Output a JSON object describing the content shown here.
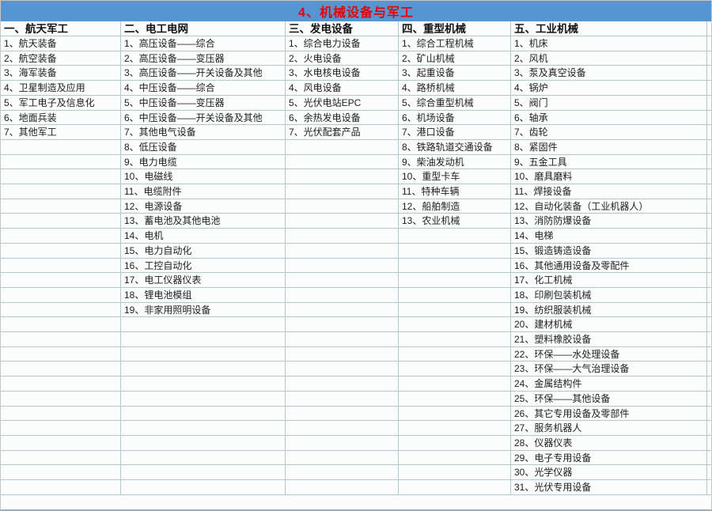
{
  "title": "4、机械设备与军工",
  "colors": {
    "title_bar_bg": "#5596d2",
    "title_text": "#e60000",
    "grid_border": "#b3c7d1",
    "cell_bg": "#fbfdfc"
  },
  "table": {
    "row_count": 31,
    "columns": [
      {
        "header": "一、航天军工",
        "items": [
          "1、航天装备",
          "2、航空装备",
          "3、海军装备",
          "4、卫星制造及应用",
          "5、军工电子及信息化",
          "6、地面兵装",
          "7、其他军工"
        ]
      },
      {
        "header": "二、电工电网",
        "items": [
          "1、高压设备——综合",
          "2、高压设备——变压器",
          "3、高压设备——开关设备及其他",
          "4、中压设备——综合",
          "5、中压设备——变压器",
          "6、中压设备——开关设备及其他",
          "7、其他电气设备",
          "8、低压设备",
          "9、电力电缆",
          "10、电磁线",
          "11、电缆附件",
          "12、电源设备",
          "13、蓄电池及其他电池",
          "14、电机",
          "15、电力自动化",
          "16、工控自动化",
          "17、电工仪器仪表",
          "18、锂电池模组",
          "19、非家用照明设备"
        ]
      },
      {
        "header": "三、发电设备",
        "items": [
          "1、综合电力设备",
          "2、火电设备",
          "3、水电核电设备",
          "4、风电设备",
          "5、光伏电站EPC",
          "6、余热发电设备",
          "7、光伏配套产品"
        ]
      },
      {
        "header": "四、重型机械",
        "items": [
          "1、综合工程机械",
          "2、矿山机械",
          "3、起重设备",
          "4、路桥机械",
          "5、综合重型机械",
          "6、机场设备",
          "7、港口设备",
          "8、铁路轨道交通设备",
          "9、柴油发动机",
          "10、重型卡车",
          "11、特种车辆",
          "12、船舶制造",
          "13、农业机械"
        ]
      },
      {
        "header": "五、工业机械",
        "items": [
          "1、机床",
          "2、风机",
          "3、泵及真空设备",
          "4、锅炉",
          "5、阀门",
          "6、轴承",
          "7、齿轮",
          "8、紧固件",
          "9、五金工具",
          "10、磨具磨料",
          "11、焊接设备",
          "12、自动化装备（工业机器人）",
          "13、消防防爆设备",
          "14、电梯",
          "15、锻造铸造设备",
          "16、其他通用设备及零配件",
          "17、化工机械",
          "18、印刷包装机械",
          "19、纺织服装机械",
          "20、建材机械",
          "21、塑料橡胶设备",
          "22、环保——水处理设备",
          "23、环保——大气治理设备",
          "24、金属结构件",
          "25、环保——其他设备",
          "26、其它专用设备及零部件",
          "27、服务机器人",
          "28、仪器仪表",
          "29、电子专用设备",
          "30、光学仪器",
          "31、光伏专用设备"
        ]
      }
    ]
  }
}
